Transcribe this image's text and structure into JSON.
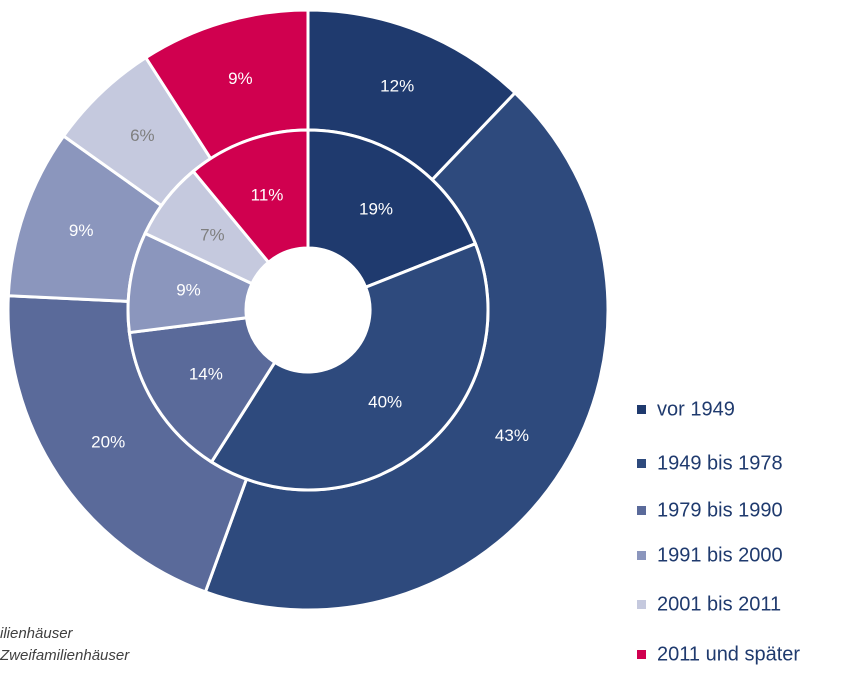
{
  "chart_data": {
    "type": "donut",
    "categories": [
      "vor 1949",
      "1949 bis 1978",
      "1979 bis 1990",
      "1991 bis 2000",
      "2001 bis 2011",
      "2011 und später"
    ],
    "colors": [
      "#1f3a6e",
      "#2e4a7d",
      "#5a6a9a",
      "#8b96bd",
      "#c5c9de",
      "#d0004f"
    ],
    "label_colors": [
      "#ffffff",
      "#ffffff",
      "#ffffff",
      "#ffffff",
      "#7f7f7f",
      "#ffffff"
    ],
    "rings": [
      {
        "values": [
          12,
          43,
          20,
          9,
          6,
          9
        ],
        "value_labels": [
          "12%",
          "43%",
          "20%",
          "9%",
          "6%",
          "9%"
        ]
      },
      {
        "values": [
          19,
          40,
          14,
          9,
          7,
          11
        ],
        "value_labels": [
          "19%",
          "40%",
          "14%",
          "9%",
          "7%",
          "11%"
        ]
      }
    ],
    "notes": [
      "ilienhäuser",
      "Zweifamilienhäuser"
    ],
    "legend": "right-bottom"
  }
}
